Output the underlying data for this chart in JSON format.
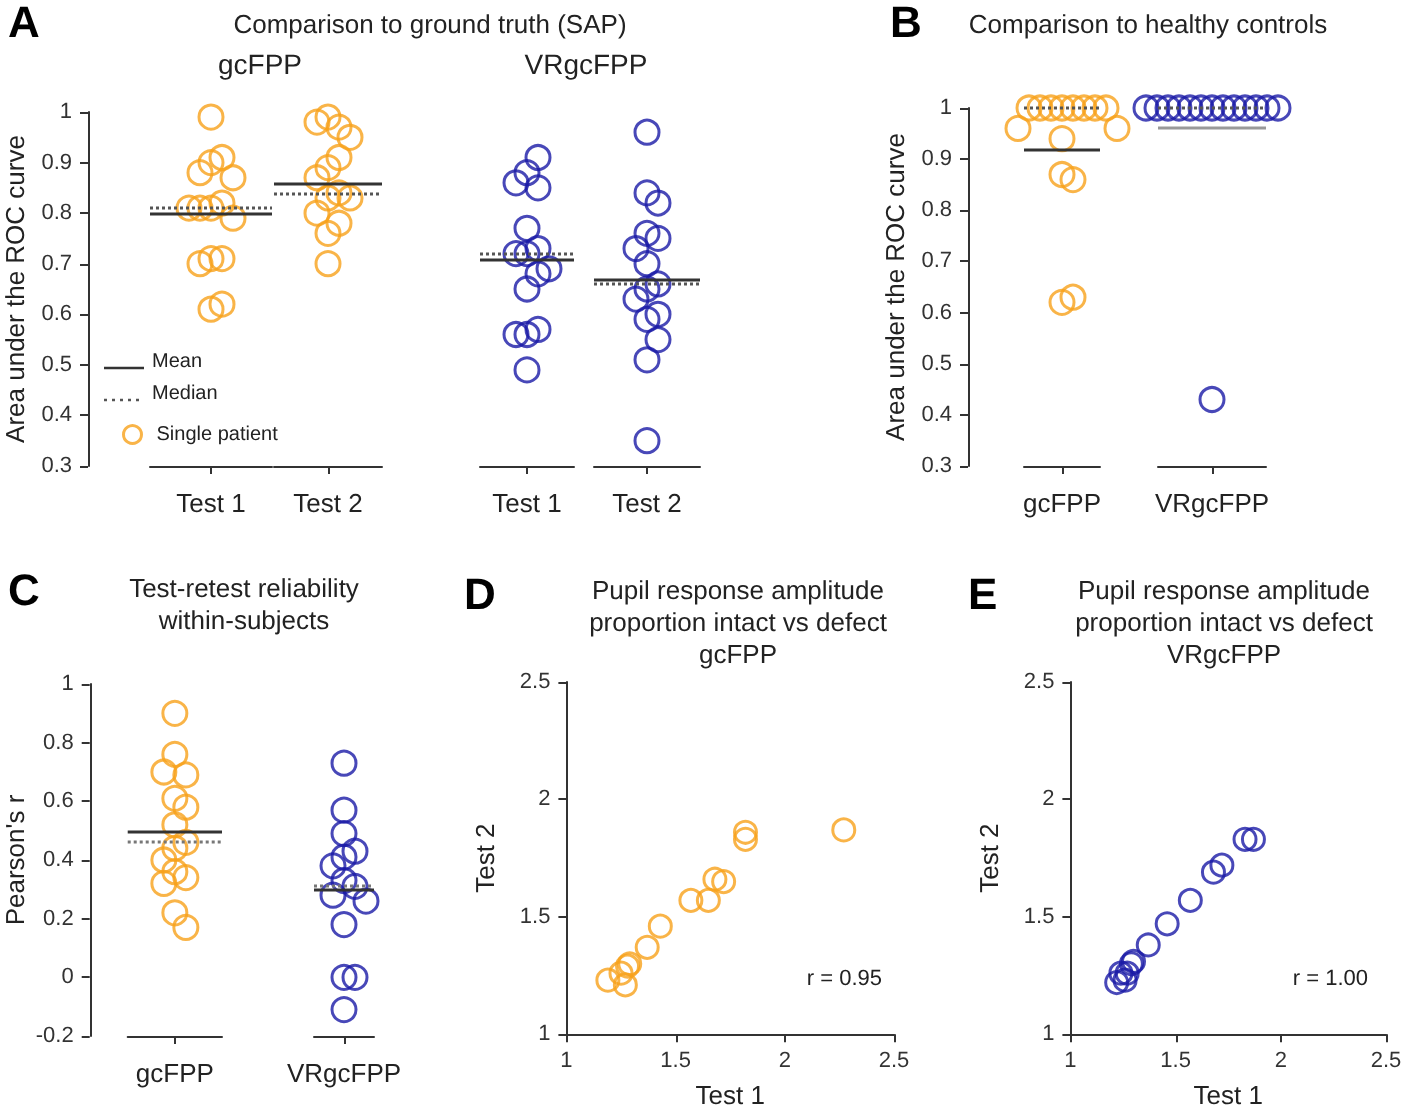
{
  "chart_data": [
    {
      "type": "scatter",
      "title": "Comparison to ground truth (SAP)",
      "subtitle": "gcFPP",
      "ylabel": "Area under the ROC curve",
      "annotations": [
        "A",
        "Mean",
        "Median"
      ],
      "categories": [
        "Test 1"
      ],
      "ylim": [
        0.3,
        1
      ],
      "yticks": [
        0.3,
        0.4,
        0.5,
        0.6,
        0.7,
        0.8,
        0.9,
        1
      ],
      "legend": "bottom left",
      "marker": "circle",
      "ref_lines": [
        {
          "axis": "y",
          "value": 0.795,
          "color": "#333333",
          "line_style": "solid"
        },
        {
          "axis": "y",
          "value": 0.81,
          "color": "#555555",
          "line_style": "dotted"
        }
      ],
      "series": [
        {
          "name": "Single patient",
          "color": "#f7a11a",
          "x": [
            "Test 1",
            "Test 1",
            "Test 1",
            "Test 1",
            "Test 1",
            "Test 1",
            "Test 1",
            "Test 1",
            "Test 1",
            "Test 1",
            "Test 1",
            "Test 1",
            "Test 1",
            "Test 1",
            "Test 1"
          ],
          "values": [
            0.99,
            0.9,
            0.91,
            0.88,
            0.87,
            0.81,
            0.82,
            0.81,
            0.79,
            0.81,
            0.71,
            0.71,
            0.7,
            0.61,
            0.62
          ]
        }
      ]
    },
    {
      "type": "scatter",
      "categories": [
        "Test 2"
      ],
      "ylim": [
        0.3,
        1
      ],
      "yticks": [
        0.3,
        0.4,
        0.5,
        0.6,
        0.7,
        0.8,
        0.9,
        1
      ],
      "tick_labels": "x",
      "marker": "circle",
      "ref_lines": [
        {
          "axis": "y",
          "value": 0.86,
          "color": "#333333",
          "line_style": "solid"
        },
        {
          "axis": "y",
          "value": 0.84,
          "color": "#555555",
          "line_style": "dotted"
        }
      ],
      "series": [
        {
          "color": "#f7a11a",
          "x": [
            "Test 2",
            "Test 2",
            "Test 2",
            "Test 2",
            "Test 2",
            "Test 2",
            "Test 2",
            "Test 2",
            "Test 2",
            "Test 2",
            "Test 2",
            "Test 2",
            "Test 2",
            "Test 2"
          ],
          "values": [
            0.99,
            0.97,
            0.98,
            0.95,
            0.89,
            0.91,
            0.87,
            0.83,
            0.84,
            0.83,
            0.8,
            0.76,
            0.78,
            0.7
          ]
        }
      ]
    },
    {
      "type": "scatter",
      "subtitle": "VRgcFPP",
      "categories": [
        "Test 1"
      ],
      "ylim": [
        0.3,
        1
      ],
      "yticks": [
        0.3,
        0.4,
        0.5,
        0.6,
        0.7,
        0.8,
        0.9,
        1
      ],
      "tick_labels": "x",
      "marker": "circle",
      "ref_lines": [
        {
          "axis": "y",
          "value": 0.71,
          "color": "#333333",
          "line_style": "solid"
        },
        {
          "axis": "y",
          "value": 0.72,
          "color": "#555555",
          "line_style": "dotted"
        }
      ],
      "series": [
        {
          "color": "#1a1aa6",
          "x": [
            "Test 1",
            "Test 1",
            "Test 1",
            "Test 1",
            "Test 1",
            "Test 1",
            "Test 1",
            "Test 1",
            "Test 1",
            "Test 1",
            "Test 1",
            "Test 1",
            "Test 1",
            "Test 1",
            "Test 1"
          ],
          "values": [
            0.88,
            0.91,
            0.85,
            0.86,
            0.77,
            0.72,
            0.73,
            0.72,
            0.68,
            0.69,
            0.65,
            0.56,
            0.57,
            0.56,
            0.49
          ]
        }
      ]
    },
    {
      "type": "scatter",
      "categories": [
        "Test 2"
      ],
      "ylim": [
        0.3,
        1
      ],
      "yticks": [
        0.3,
        0.4,
        0.5,
        0.6,
        0.7,
        0.8,
        0.9,
        1
      ],
      "tick_labels": "x",
      "marker": "circle",
      "ref_lines": [
        {
          "axis": "y",
          "value": 0.67,
          "color": "#333333",
          "line_style": "solid"
        },
        {
          "axis": "y",
          "value": 0.66,
          "color": "#555555",
          "line_style": "dotted"
        }
      ],
      "series": [
        {
          "color": "#1a1aa6",
          "x": [
            "Test 2",
            "Test 2",
            "Test 2",
            "Test 2",
            "Test 2",
            "Test 2",
            "Test 2",
            "Test 2",
            "Test 2",
            "Test 2",
            "Test 2",
            "Test 2",
            "Test 2",
            "Test 2",
            "Test 2"
          ],
          "values": [
            0.96,
            0.84,
            0.82,
            0.76,
            0.75,
            0.73,
            0.7,
            0.66,
            0.65,
            0.63,
            0.59,
            0.6,
            0.55,
            0.51,
            0.35
          ]
        }
      ]
    },
    {
      "type": "scatter",
      "title": "Comparison to healthy controls",
      "ylabel": "Area under the ROC curve",
      "annotations": [
        "B"
      ],
      "categories": [
        "gcFPP"
      ],
      "ylim": [
        0.3,
        1
      ],
      "yticks": [
        0.3,
        0.4,
        0.5,
        0.6,
        0.7,
        0.8,
        0.9,
        1
      ],
      "marker": "circle",
      "ref_lines": [
        {
          "axis": "y",
          "value": 0.92,
          "color": "#333333",
          "line_style": "solid"
        },
        {
          "axis": "y",
          "value": 1,
          "color": "#555555",
          "line_style": "dotted"
        }
      ],
      "series": [
        {
          "color": "#f7a11a",
          "x": [
            "gcFPP",
            "gcFPP",
            "gcFPP",
            "gcFPP",
            "gcFPP",
            "gcFPP",
            "gcFPP",
            "gcFPP",
            "gcFPP",
            "gcFPP",
            "gcFPP",
            "gcFPP",
            "gcFPP",
            "gcFPP",
            "gcFPP"
          ],
          "values": [
            1,
            1,
            1,
            1,
            1,
            1,
            1,
            1,
            0.96,
            0.96,
            0.94,
            0.87,
            0.86,
            0.62,
            0.63
          ]
        }
      ]
    },
    {
      "type": "scatter",
      "categories": [
        "VRgcFPP"
      ],
      "ylim": [
        0.3,
        1
      ],
      "yticks": [
        0.3,
        0.4,
        0.5,
        0.6,
        0.7,
        0.8,
        0.9,
        1
      ],
      "tick_labels": "x",
      "marker": "circle",
      "ref_lines": [
        {
          "axis": "y",
          "value": 0.96,
          "color": "#999999",
          "line_style": "solid"
        },
        {
          "axis": "y",
          "value": 1,
          "color": "#555555",
          "line_style": "dotted"
        }
      ],
      "series": [
        {
          "color": "#1a1aa6",
          "x": [
            "VRgcFPP",
            "VRgcFPP",
            "VRgcFPP",
            "VRgcFPP",
            "VRgcFPP",
            "VRgcFPP",
            "VRgcFPP",
            "VRgcFPP",
            "VRgcFPP",
            "VRgcFPP",
            "VRgcFPP",
            "VRgcFPP",
            "VRgcFPP",
            "VRgcFPP"
          ],
          "values": [
            1,
            1,
            1,
            1,
            1,
            1,
            1,
            1,
            1,
            1,
            1,
            1,
            1,
            0.43
          ]
        }
      ]
    },
    {
      "type": "scatter",
      "title": "Test-retest reliability\nwithin-subjects",
      "ylabel": "Pearson's r",
      "annotations": [
        "C"
      ],
      "categories": [
        "gcFPP"
      ],
      "ylim": [
        -0.2,
        1
      ],
      "yticks": [
        -0.2,
        0,
        0.2,
        0.4,
        0.6,
        0.8,
        1
      ],
      "marker": "circle",
      "ref_lines": [
        {
          "axis": "y",
          "value": 0.5,
          "color": "#333333",
          "line_style": "solid"
        },
        {
          "axis": "y",
          "value": 0.46,
          "color": "#777777",
          "line_style": "dotted"
        }
      ],
      "series": [
        {
          "color": "#f7a11a",
          "x": [
            "gcFPP",
            "gcFPP",
            "gcFPP",
            "gcFPP",
            "gcFPP",
            "gcFPP",
            "gcFPP",
            "gcFPP",
            "gcFPP",
            "gcFPP",
            "gcFPP",
            "gcFPP",
            "gcFPP",
            "gcFPP",
            "gcFPP"
          ],
          "values": [
            0.9,
            0.76,
            0.69,
            0.7,
            0.61,
            0.58,
            0.52,
            0.46,
            0.44,
            0.4,
            0.36,
            0.34,
            0.32,
            0.22,
            0.17
          ]
        }
      ]
    },
    {
      "type": "scatter",
      "categories": [
        "VRgcFPP"
      ],
      "ylim": [
        -0.2,
        1
      ],
      "yticks": [
        -0.2,
        0,
        0.2,
        0.4,
        0.6,
        0.8,
        1
      ],
      "tick_labels": "x",
      "marker": "circle",
      "ref_lines": [
        {
          "axis": "y",
          "value": 0.3,
          "color": "#333333",
          "line_style": "solid"
        },
        {
          "axis": "y",
          "value": 0.31,
          "color": "#777777",
          "line_style": "dotted"
        }
      ],
      "series": [
        {
          "color": "#1a1aa6",
          "x": [
            "VRgcFPP",
            "VRgcFPP",
            "VRgcFPP",
            "VRgcFPP",
            "VRgcFPP",
            "VRgcFPP",
            "VRgcFPP",
            "VRgcFPP",
            "VRgcFPP",
            "VRgcFPP",
            "VRgcFPP",
            "VRgcFPP",
            "VRgcFPP",
            "VRgcFPP"
          ],
          "values": [
            0.73,
            0.57,
            0.49,
            0.43,
            0.41,
            0.38,
            0.33,
            0.31,
            0.28,
            0.26,
            0.18,
            0,
            0,
            -0.11
          ]
        }
      ]
    },
    {
      "type": "scatter",
      "title": "Pupil response amplitude\nproportion intact vs defect\ngcFPP",
      "xlabel": "Test 1",
      "ylabel": "Test 2",
      "annotations": [
        "D",
        "r = 0.95"
      ],
      "xlim": [
        1,
        2.5
      ],
      "xticks": [
        1,
        1.5,
        2,
        2.5
      ],
      "ylim": [
        1,
        2.5
      ],
      "yticks": [
        1,
        1.5,
        2,
        2.5
      ],
      "marker": "circle",
      "series": [
        {
          "color": "#f7a11a",
          "x": [
            1.19,
            1.25,
            1.27,
            1.28,
            1.29,
            1.37,
            1.43,
            1.57,
            1.65,
            1.68,
            1.72,
            1.82,
            1.82,
            2.27
          ],
          "values": [
            1.23,
            1.26,
            1.21,
            1.29,
            1.3,
            1.37,
            1.46,
            1.57,
            1.57,
            1.66,
            1.65,
            1.86,
            1.83,
            1.87
          ]
        }
      ]
    },
    {
      "type": "scatter",
      "title": "Pupil response amplitude\nproportion intact vs defect\nVRgcFPP",
      "xlabel": "Test 1",
      "ylabel": "Test 2",
      "annotations": [
        "E",
        "r = 1.00"
      ],
      "xlim": [
        1,
        2.5
      ],
      "xticks": [
        1,
        1.5,
        2,
        2.5
      ],
      "ylim": [
        1,
        2.5
      ],
      "yticks": [
        1,
        1.5,
        2,
        2.5
      ],
      "marker": "circle",
      "series": [
        {
          "color": "#1a1aa6",
          "x": [
            1.22,
            1.24,
            1.26,
            1.27,
            1.29,
            1.3,
            1.37,
            1.46,
            1.57,
            1.68,
            1.72,
            1.83,
            1.87
          ],
          "values": [
            1.22,
            1.26,
            1.23,
            1.26,
            1.3,
            1.31,
            1.38,
            1.47,
            1.57,
            1.69,
            1.72,
            1.83,
            1.83
          ]
        }
      ]
    }
  ]
}
